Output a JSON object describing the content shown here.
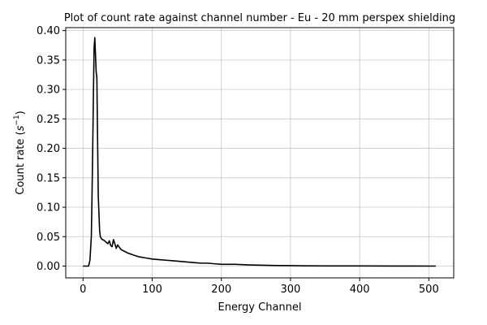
{
  "chart_data": {
    "type": "line",
    "title": "Plot of count rate against channel number - Eu - 20 mm perspex shielding",
    "xlabel": "Energy Channel",
    "ylabel_text": "Count rate (",
    "ylabel_unit_base": "s",
    "ylabel_unit_exp": "−1",
    "ylabel_close": ")",
    "xlim": [
      -25,
      536
    ],
    "ylim": [
      -0.02,
      0.405
    ],
    "xticks": [
      0,
      100,
      200,
      300,
      400,
      500
    ],
    "yticks": [
      0.0,
      0.05,
      0.1,
      0.15,
      0.2,
      0.25,
      0.3,
      0.35,
      0.4
    ],
    "ytick_labels": [
      "0.00",
      "0.05",
      "0.10",
      "0.15",
      "0.20",
      "0.25",
      "0.30",
      "0.35",
      "0.40"
    ],
    "grid": true,
    "line_color": "#000000",
    "series": [
      {
        "x": [
          0,
          8,
          10,
          12,
          13,
          14,
          15,
          16,
          17,
          18,
          19,
          20,
          21,
          22,
          23,
          24,
          25,
          26,
          27,
          28,
          30,
          32,
          34,
          36,
          38,
          40,
          42,
          44,
          46,
          48,
          50,
          55,
          60,
          65,
          70,
          75,
          80,
          90,
          100,
          110,
          120,
          130,
          140,
          150,
          160,
          170,
          180,
          190,
          200,
          220,
          240,
          260,
          280,
          300,
          320,
          350,
          400,
          450,
          510
        ],
        "y": [
          0.0,
          0.0,
          0.01,
          0.05,
          0.12,
          0.2,
          0.29,
          0.37,
          0.388,
          0.36,
          0.33,
          0.32,
          0.22,
          0.12,
          0.09,
          0.06,
          0.05,
          0.048,
          0.046,
          0.045,
          0.044,
          0.042,
          0.04,
          0.038,
          0.043,
          0.035,
          0.033,
          0.045,
          0.038,
          0.03,
          0.036,
          0.028,
          0.025,
          0.022,
          0.02,
          0.018,
          0.016,
          0.014,
          0.012,
          0.011,
          0.01,
          0.009,
          0.008,
          0.007,
          0.006,
          0.005,
          0.005,
          0.004,
          0.003,
          0.003,
          0.002,
          0.0015,
          0.001,
          0.0008,
          0.0005,
          0.0003,
          0.0002,
          0.0001,
          0.0
        ]
      }
    ]
  }
}
